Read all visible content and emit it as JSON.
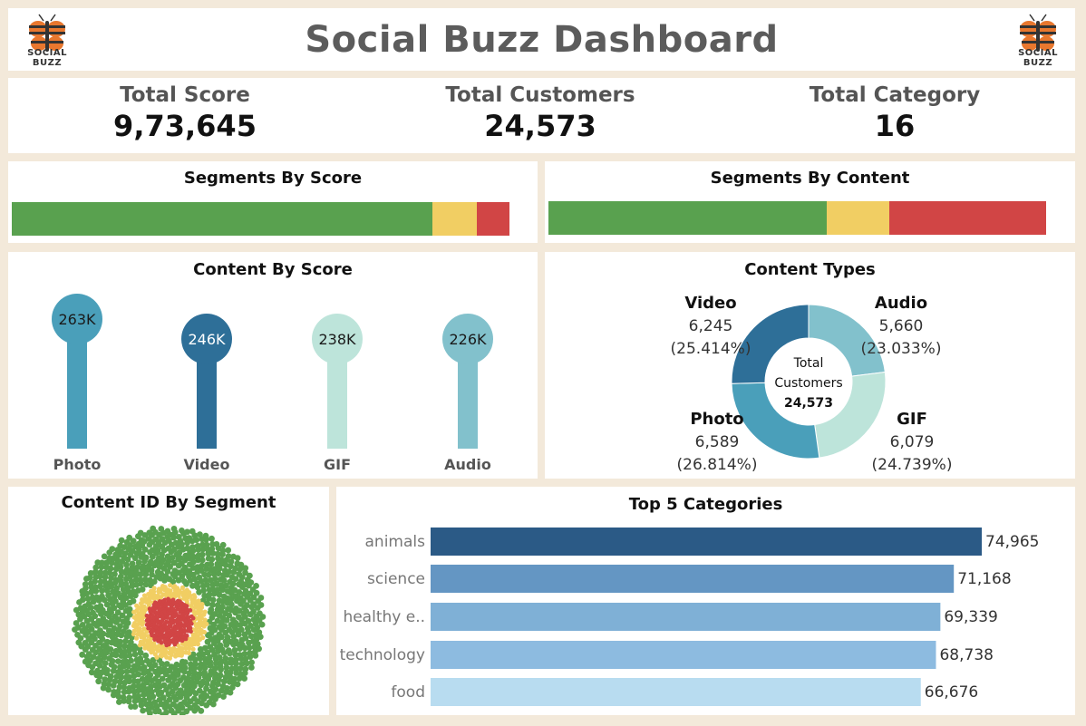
{
  "header": {
    "title": "Social Buzz Dashboard",
    "logo_text": "SOCIAL BUZZ"
  },
  "kpis": [
    {
      "label": "Total Score",
      "value": "9,73,645"
    },
    {
      "label": "Total Customers",
      "value": "24,573"
    },
    {
      "label": "Total Category",
      "value": "16"
    }
  ],
  "colors": {
    "positive": "#59a14f",
    "neutral": "#f1ce63",
    "negative": "#d14545",
    "photo": "#4a9fba",
    "video": "#2e6f98",
    "gif": "#bde4da",
    "audio": "#82c1cc"
  },
  "chart_data": [
    {
      "type": "bar",
      "title": "Segments By Score",
      "orientation": "stacked-horizontal",
      "series": [
        {
          "values": [
            0.845
          ],
          "color": "#59a14f"
        },
        {
          "values": [
            0.09
          ],
          "color": "#f1ce63"
        },
        {
          "values": [
            0.065
          ],
          "color": "#d14545"
        }
      ]
    },
    {
      "type": "bar",
      "title": "Segments By Content",
      "orientation": "stacked-horizontal",
      "series": [
        {
          "values": [
            0.56
          ],
          "color": "#59a14f"
        },
        {
          "values": [
            0.125
          ],
          "color": "#f1ce63"
        },
        {
          "values": [
            0.315
          ],
          "color": "#d14545"
        }
      ]
    },
    {
      "type": "bar",
      "title": "Content By Score",
      "style": "lollipop",
      "categories": [
        "Photo",
        "Video",
        "GIF",
        "Audio"
      ],
      "values": [
        263,
        246,
        238,
        226
      ],
      "labels": [
        "263K",
        "246K",
        "238K",
        "226K"
      ],
      "ylim": [
        0,
        263
      ]
    },
    {
      "type": "pie",
      "title": "Content Types",
      "style": "donut",
      "center_label": [
        "Total",
        "Customers"
      ],
      "center_value": "24,573",
      "slices": [
        {
          "label": "Audio",
          "value": 5660,
          "value_text": "5,660",
          "pct_text": "(23.033%)",
          "color": "#82c1cc"
        },
        {
          "label": "GIF",
          "value": 6079,
          "value_text": "6,079",
          "pct_text": "(24.739%)",
          "color": "#bde4da"
        },
        {
          "label": "Photo",
          "value": 6589,
          "value_text": "6,589",
          "pct_text": "(26.814%)",
          "color": "#4a9fba"
        },
        {
          "label": "Video",
          "value": 6245,
          "value_text": "6,245",
          "pct_text": "(25.414%)",
          "color": "#2e6f98"
        }
      ]
    },
    {
      "type": "scatter",
      "title": "Content ID By Segment",
      "style": "packed-bubbles",
      "segments": [
        {
          "share": 0.845,
          "color": "#59a14f"
        },
        {
          "share": 0.09,
          "color": "#f1ce63"
        },
        {
          "share": 0.065,
          "color": "#d14545"
        }
      ]
    },
    {
      "type": "bar",
      "title": "Top 5 Categories",
      "orientation": "horizontal",
      "categories": [
        "animals",
        "science",
        "healthy e..",
        "technology",
        "food"
      ],
      "values": [
        74965,
        71168,
        69339,
        68738,
        66676
      ],
      "value_labels": [
        "74,965",
        "71,168",
        "69,339",
        "68,738",
        "66,676"
      ],
      "colors": [
        "#2b5a86",
        "#6496c3",
        "#7fb0d6",
        "#8dbbe0",
        "#b8dcf0"
      ],
      "xlim": [
        0,
        74965
      ]
    }
  ]
}
